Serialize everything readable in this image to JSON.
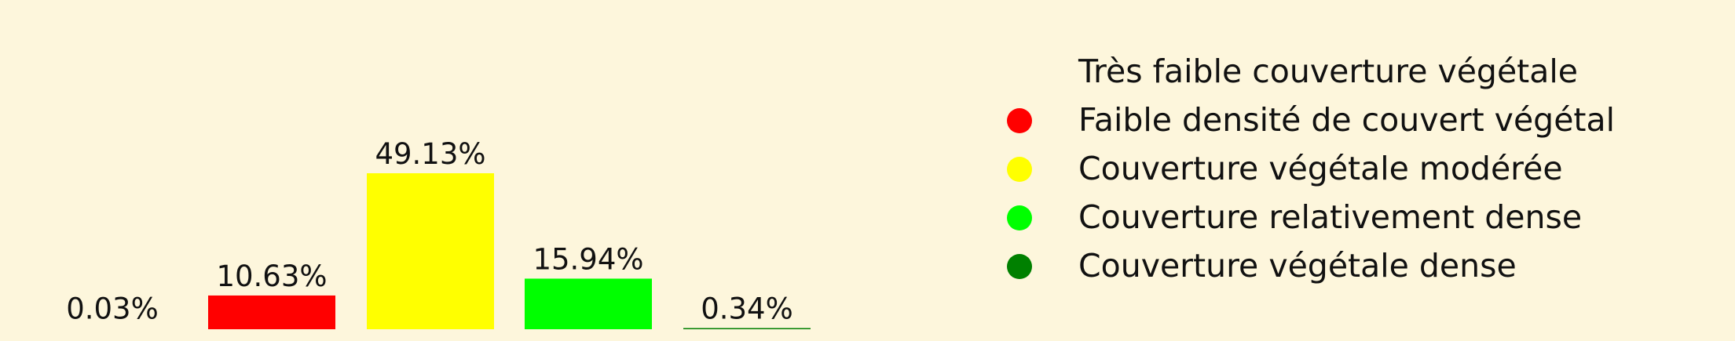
{
  "chart_data": {
    "type": "bar",
    "categories": [
      "Très faible couverture végétale",
      "Faible densité de couvert végétal",
      "Couverture végétale modérée",
      "Couverture relativement dense",
      "Couverture végétale dense"
    ],
    "values": [
      0.03,
      10.63,
      49.13,
      15.94,
      0.34
    ],
    "value_labels": [
      "0.03%",
      "10.63%",
      "49.13%",
      "15.94%",
      "0.34%"
    ],
    "colors": [
      "#fdf6dc",
      "#ff0000",
      "#ffff00",
      "#00ff00",
      "#008000"
    ],
    "legend_placement": "right",
    "axes_visible": false,
    "grid": false
  }
}
